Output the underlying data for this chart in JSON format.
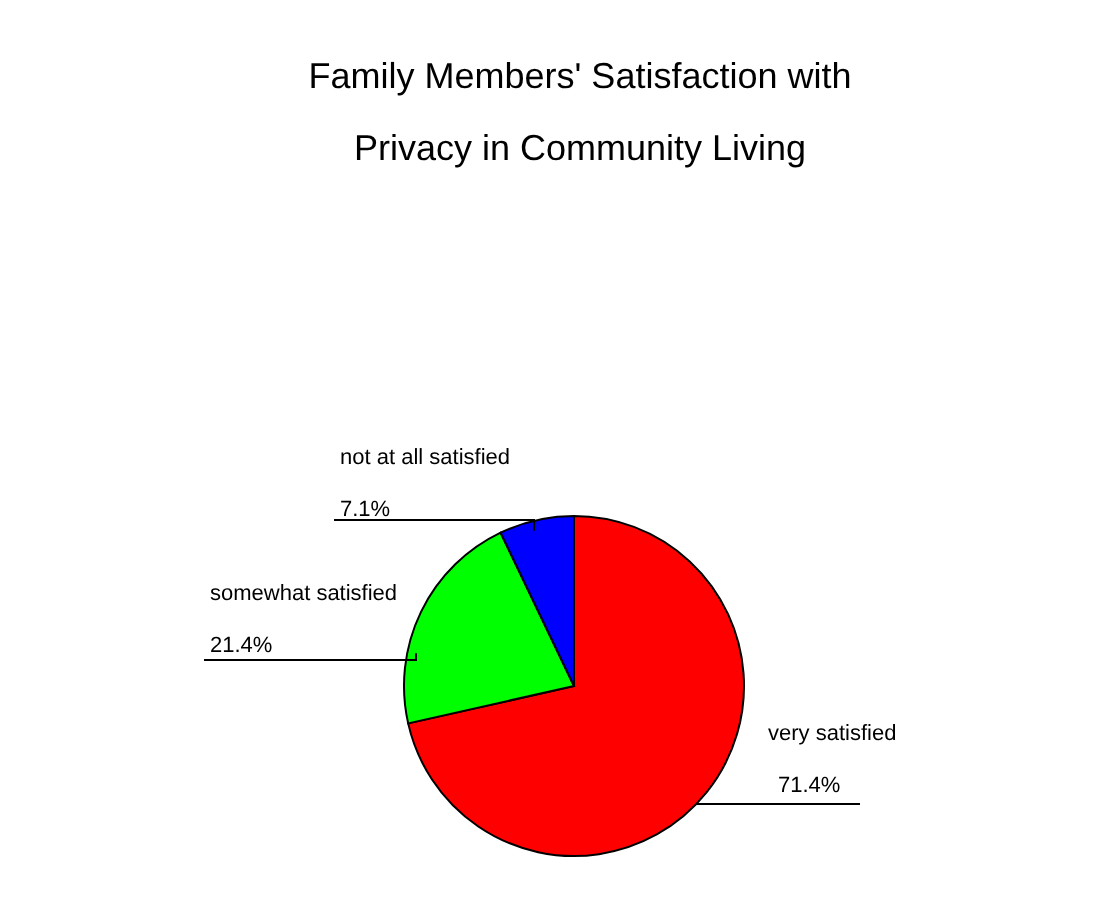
{
  "chart_data": {
    "type": "pie",
    "title": "Family Members' Satisfaction with Privacy in Community Living",
    "categories": [
      "very satisfied",
      "somewhat satisfied",
      "not at all satisfied"
    ],
    "values": [
      71.4,
      21.4,
      7.1
    ],
    "value_labels": [
      "71.4%",
      "21.4%",
      "7.1%"
    ],
    "colors": [
      "#ff0000",
      "#00ff00",
      "#0000ff"
    ]
  }
}
